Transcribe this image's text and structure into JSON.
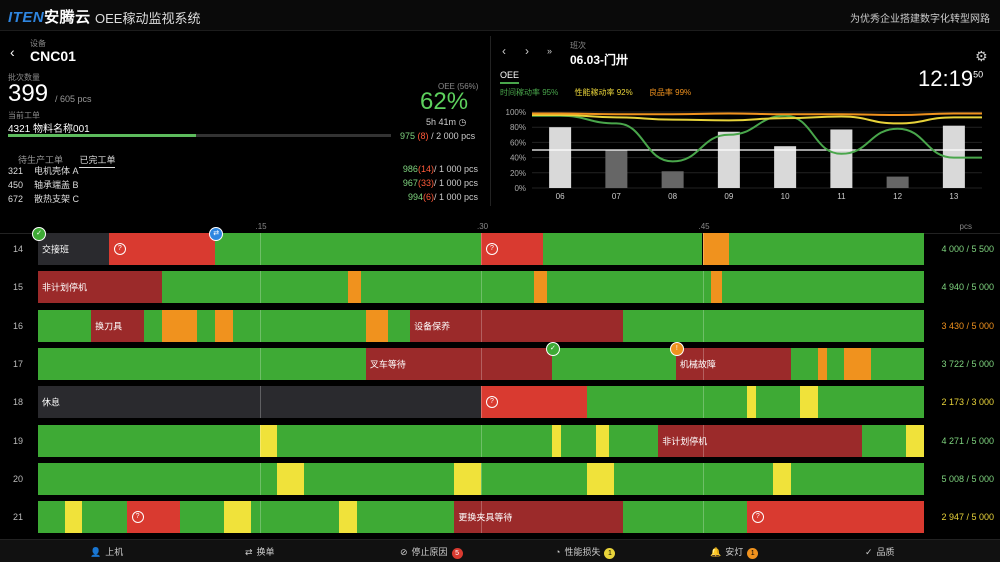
{
  "header": {
    "logo_a": "ITEN",
    "logo_b": "安腾云",
    "app_title": "OEE稼动监视系统",
    "slogan": "为优秀企业搭建数字化转型网路"
  },
  "machine": {
    "label": "设备",
    "name": "CNC01",
    "batch_label": "批次数量",
    "batch_value": "399",
    "batch_total": "/ 605 pcs",
    "wo_label": "当前工单",
    "wo_value": "4321 物料名称001",
    "progress": 0.49,
    "oee_label": "OEE (56%)",
    "oee_value": "62%",
    "elapsed": "5h 41m",
    "elapsed_icon": "clock-icon",
    "qty_good": "975",
    "qty_bad": "(8)",
    "qty_total": "/ 2 000 pcs"
  },
  "tabs": [
    "待生产工单",
    "已完工单"
  ],
  "work_orders": [
    {
      "no": "321",
      "name": "电机壳体 A",
      "good": "986",
      "bad": "(14)",
      "total": "/ 1 000 pcs"
    },
    {
      "no": "450",
      "name": "轴承端盖 B",
      "good": "967",
      "bad": "(33)",
      "total": "/ 1 000 pcs"
    },
    {
      "no": "672",
      "name": "散热支架 C",
      "good": "994",
      "bad": "(6)",
      "total": "/ 1 000 pcs"
    }
  ],
  "shift": {
    "label": "班次",
    "name": "06.03-门卅",
    "time_main": "12:19",
    "time_sec": "50",
    "oee_tab": "OEE",
    "legend": [
      {
        "text": "时间稼动率 95%",
        "color": "#49a64b"
      },
      {
        "text": "性能稼动率 92%",
        "color": "#e8d33a"
      },
      {
        "text": "良品率 99%",
        "color": "#f0921e"
      }
    ]
  },
  "chart_data": {
    "type": "bar",
    "categories": [
      "06",
      "07",
      "08",
      "09",
      "10",
      "11",
      "12",
      "13"
    ],
    "values": [
      80,
      50,
      22,
      74,
      55,
      77,
      15,
      82
    ],
    "ylim": [
      0,
      100
    ],
    "yticks": [
      "0%",
      "20%",
      "40%",
      "60%",
      "80%",
      "100%"
    ],
    "reference_line": 0.5,
    "bar_colors": [
      "#d9d9d9",
      "#666666",
      "#666666",
      "#d9d9d9",
      "#d9d9d9",
      "#d9d9d9",
      "#666666",
      "#d9d9d9"
    ],
    "series": [
      {
        "color": "#49a64b",
        "values": [
          95,
          85,
          35,
          70,
          95,
          45,
          78,
          40
        ]
      },
      {
        "color": "#e8d33a",
        "values": [
          96,
          93,
          90,
          89,
          92,
          94,
          85,
          93
        ]
      },
      {
        "color": "#f0921e",
        "values": [
          98,
          97,
          97,
          98,
          97,
          97,
          96,
          98
        ]
      }
    ]
  },
  "timeline": {
    "ticks": [
      ".15",
      ".30",
      ".45"
    ],
    "unit": "pcs",
    "rows": [
      {
        "hour": "14",
        "count": "4 000 / 5 500",
        "count_color": "#7fd47f",
        "segs": [
          {
            "s": 0,
            "e": 0.08,
            "c": "#2a2a2e",
            "t": "交接班"
          },
          {
            "s": 0.08,
            "e": 0.2,
            "c": "#d93a30",
            "icon": "?"
          },
          {
            "s": 0.2,
            "e": 0.5,
            "c": "#3eaa35"
          },
          {
            "s": 0.5,
            "e": 0.57,
            "c": "#d93a30",
            "icon": "?"
          },
          {
            "s": 0.57,
            "e": 0.75,
            "c": "#3eaa35"
          },
          {
            "s": 0.75,
            "e": 0.78,
            "c": "#f0921e"
          },
          {
            "s": 0.78,
            "e": 1,
            "c": "#3eaa35"
          }
        ]
      },
      {
        "hour": "15",
        "count": "4 940 / 5 000",
        "count_color": "#7fd47f",
        "segs": [
          {
            "s": 0,
            "e": 0.14,
            "c": "#9b2a2a",
            "t": "非计划停机"
          },
          {
            "s": 0.14,
            "e": 0.35,
            "c": "#3eaa35"
          },
          {
            "s": 0.35,
            "e": 0.365,
            "c": "#f0921e"
          },
          {
            "s": 0.365,
            "e": 0.56,
            "c": "#3eaa35"
          },
          {
            "s": 0.56,
            "e": 0.575,
            "c": "#f0921e"
          },
          {
            "s": 0.575,
            "e": 0.76,
            "c": "#3eaa35"
          },
          {
            "s": 0.76,
            "e": 0.772,
            "c": "#f0921e"
          },
          {
            "s": 0.772,
            "e": 1,
            "c": "#3eaa35"
          }
        ]
      },
      {
        "hour": "16",
        "count": "3 430 / 5 000",
        "count_color": "#f0921e",
        "segs": [
          {
            "s": 0,
            "e": 0.06,
            "c": "#3eaa35"
          },
          {
            "s": 0.06,
            "e": 0.12,
            "c": "#9b2a2a",
            "t": "换刀具"
          },
          {
            "s": 0.12,
            "e": 0.14,
            "c": "#3eaa35"
          },
          {
            "s": 0.14,
            "e": 0.18,
            "c": "#f0921e"
          },
          {
            "s": 0.18,
            "e": 0.2,
            "c": "#3eaa35"
          },
          {
            "s": 0.2,
            "e": 0.22,
            "c": "#f0921e"
          },
          {
            "s": 0.22,
            "e": 0.37,
            "c": "#3eaa35"
          },
          {
            "s": 0.37,
            "e": 0.395,
            "c": "#f0921e"
          },
          {
            "s": 0.395,
            "e": 0.42,
            "c": "#3eaa35"
          },
          {
            "s": 0.42,
            "e": 0.66,
            "c": "#9b2a2a",
            "t": "设备保养"
          },
          {
            "s": 0.66,
            "e": 1,
            "c": "#3eaa35"
          }
        ]
      },
      {
        "hour": "17",
        "count": "3 722 / 5 000",
        "count_color": "#7fd47f",
        "segs": [
          {
            "s": 0,
            "e": 0.37,
            "c": "#3eaa35"
          },
          {
            "s": 0.37,
            "e": 0.58,
            "c": "#9b2a2a",
            "t": "叉车等待"
          },
          {
            "s": 0.58,
            "e": 0.72,
            "c": "#3eaa35"
          },
          {
            "s": 0.72,
            "e": 0.85,
            "c": "#9b2a2a",
            "t": "机械故障"
          },
          {
            "s": 0.85,
            "e": 0.88,
            "c": "#3eaa35"
          },
          {
            "s": 0.88,
            "e": 0.89,
            "c": "#f0921e"
          },
          {
            "s": 0.89,
            "e": 0.91,
            "c": "#3eaa35"
          },
          {
            "s": 0.91,
            "e": 0.94,
            "c": "#f0921e"
          },
          {
            "s": 0.94,
            "e": 1,
            "c": "#3eaa35"
          }
        ]
      },
      {
        "hour": "18",
        "count": "2 173 / 3 000",
        "count_color": "#e8d33a",
        "segs": [
          {
            "s": 0,
            "e": 0.5,
            "c": "#2a2a2e",
            "t": "休息"
          },
          {
            "s": 0.5,
            "e": 0.62,
            "c": "#d93a30",
            "icon": "?"
          },
          {
            "s": 0.62,
            "e": 0.8,
            "c": "#3eaa35"
          },
          {
            "s": 0.8,
            "e": 0.81,
            "c": "#f0e23a"
          },
          {
            "s": 0.81,
            "e": 0.86,
            "c": "#3eaa35"
          },
          {
            "s": 0.86,
            "e": 0.88,
            "c": "#f0e23a"
          },
          {
            "s": 0.88,
            "e": 1,
            "c": "#3eaa35"
          }
        ]
      },
      {
        "hour": "19",
        "count": "4 271 / 5 000",
        "count_color": "#7fd47f",
        "segs": [
          {
            "s": 0,
            "e": 0.25,
            "c": "#3eaa35"
          },
          {
            "s": 0.25,
            "e": 0.27,
            "c": "#f0e23a"
          },
          {
            "s": 0.27,
            "e": 0.58,
            "c": "#3eaa35"
          },
          {
            "s": 0.58,
            "e": 0.59,
            "c": "#f0e23a"
          },
          {
            "s": 0.59,
            "e": 0.63,
            "c": "#3eaa35"
          },
          {
            "s": 0.63,
            "e": 0.645,
            "c": "#f0e23a"
          },
          {
            "s": 0.645,
            "e": 0.7,
            "c": "#3eaa35"
          },
          {
            "s": 0.7,
            "e": 0.93,
            "c": "#9b2a2a",
            "t": "非计划停机"
          },
          {
            "s": 0.93,
            "e": 0.98,
            "c": "#3eaa35"
          },
          {
            "s": 0.98,
            "e": 1,
            "c": "#f0e23a"
          }
        ]
      },
      {
        "hour": "20",
        "count": "5 008 / 5 000",
        "count_color": "#7fd47f",
        "segs": [
          {
            "s": 0,
            "e": 0.27,
            "c": "#3eaa35"
          },
          {
            "s": 0.27,
            "e": 0.3,
            "c": "#f0e23a"
          },
          {
            "s": 0.3,
            "e": 0.47,
            "c": "#3eaa35"
          },
          {
            "s": 0.47,
            "e": 0.5,
            "c": "#f0e23a"
          },
          {
            "s": 0.5,
            "e": 0.62,
            "c": "#3eaa35"
          },
          {
            "s": 0.62,
            "e": 0.65,
            "c": "#f0e23a"
          },
          {
            "s": 0.65,
            "e": 0.83,
            "c": "#3eaa35"
          },
          {
            "s": 0.83,
            "e": 0.85,
            "c": "#f0e23a"
          },
          {
            "s": 0.85,
            "e": 1,
            "c": "#3eaa35"
          }
        ]
      },
      {
        "hour": "21",
        "count": "2 947 / 5 000",
        "count_color": "#e8d33a",
        "segs": [
          {
            "s": 0,
            "e": 0.03,
            "c": "#3eaa35"
          },
          {
            "s": 0.03,
            "e": 0.05,
            "c": "#f0e23a"
          },
          {
            "s": 0.05,
            "e": 0.1,
            "c": "#3eaa35"
          },
          {
            "s": 0.1,
            "e": 0.16,
            "c": "#d93a30",
            "icon": "?"
          },
          {
            "s": 0.16,
            "e": 0.21,
            "c": "#3eaa35"
          },
          {
            "s": 0.21,
            "e": 0.24,
            "c": "#f0e23a"
          },
          {
            "s": 0.24,
            "e": 0.34,
            "c": "#3eaa35"
          },
          {
            "s": 0.34,
            "e": 0.36,
            "c": "#f0e23a"
          },
          {
            "s": 0.36,
            "e": 0.47,
            "c": "#3eaa35"
          },
          {
            "s": 0.47,
            "e": 0.66,
            "c": "#9b2a2a",
            "t": "更换夹具等待"
          },
          {
            "s": 0.66,
            "e": 0.8,
            "c": "#3eaa35"
          },
          {
            "s": 0.8,
            "e": 1,
            "c": "#d93a30",
            "icon": "?"
          }
        ]
      }
    ]
  },
  "bottom": [
    {
      "label": "上机",
      "icon": "user-icon"
    },
    {
      "label": "换单",
      "icon": "swap-icon"
    },
    {
      "label": "停止原因",
      "icon": "stop-icon",
      "badge": "5",
      "badge_color": "#d93a30"
    },
    {
      "label": "性能损失",
      "icon": "gauge-icon",
      "badge": "1",
      "badge_color": "#e8d33a"
    },
    {
      "label": "安灯",
      "icon": "bell-icon",
      "badge": "1",
      "badge_color": "#f0921e"
    },
    {
      "label": "品质",
      "icon": "check-icon"
    }
  ]
}
